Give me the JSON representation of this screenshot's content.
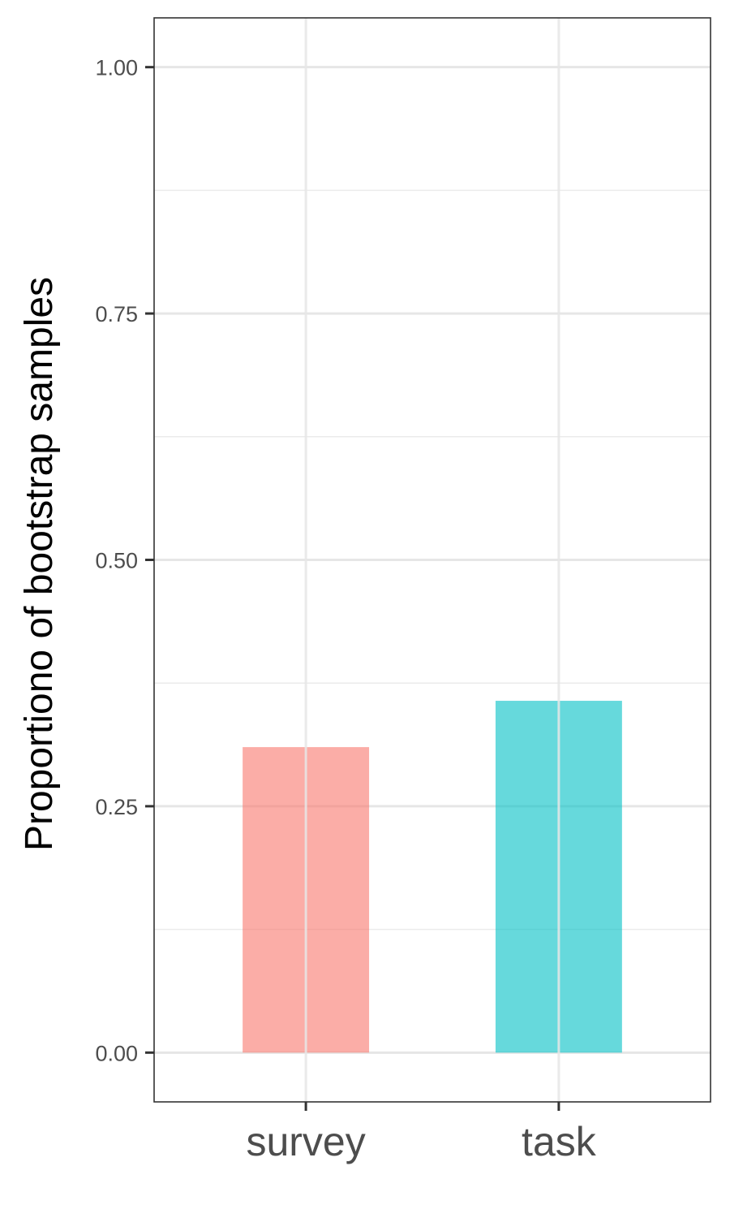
{
  "chart_data": {
    "type": "bar",
    "categories": [
      "survey",
      "task"
    ],
    "values": [
      0.31,
      0.357
    ],
    "colors": [
      "#F8766D",
      "#00BFC4"
    ],
    "bar_opacity": 0.6,
    "title": "",
    "xlabel": "",
    "ylabel": "Proportiono of bootstrap samples",
    "ylim": [
      -0.05,
      1.05
    ],
    "yticks": [
      0.0,
      0.25,
      0.5,
      0.75,
      1.0
    ],
    "ytick_labels": [
      "0.00",
      "0.25",
      "0.50",
      "0.75",
      "1.00"
    ],
    "grid": true,
    "legend": "none"
  }
}
